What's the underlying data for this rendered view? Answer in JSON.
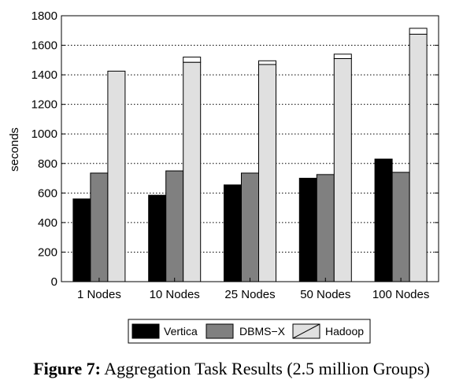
{
  "chart_data": {
    "type": "bar",
    "categories": [
      "1 Nodes",
      "10 Nodes",
      "25 Nodes",
      "50 Nodes",
      "100 Nodes"
    ],
    "series": [
      {
        "name": "Vertica",
        "values": [
          560,
          585,
          655,
          700,
          830
        ],
        "color": "#000000"
      },
      {
        "name": "DBMS−X",
        "values": [
          735,
          750,
          735,
          725,
          740
        ],
        "color": "#808080"
      },
      {
        "name": "Hadoop",
        "values": [
          1425,
          1485,
          1470,
          1510,
          1675
        ],
        "stacked_top": [
          0,
          35,
          25,
          30,
          40
        ],
        "color": "#e0e0e0"
      }
    ],
    "ylabel": "seconds",
    "ylim": [
      0,
      1800
    ],
    "yticks": [
      0,
      200,
      400,
      600,
      800,
      1000,
      1200,
      1400,
      1600,
      1800
    ],
    "grid": true,
    "legend_position": "bottom"
  },
  "caption": {
    "label": "Figure 7:",
    "text": "Aggregation Task Results (2.5 million Groups)"
  }
}
